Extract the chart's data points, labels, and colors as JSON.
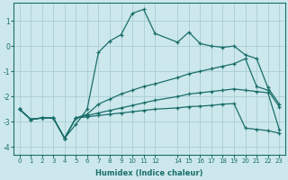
{
  "xlabel": "Humidex (Indice chaleur)",
  "background_color": "#cce8ec",
  "grid_color": "#aacdd4",
  "line_color": "#1a6e6a",
  "xlim": [
    -0.5,
    23.5
  ],
  "ylim": [
    -4.3,
    1.7
  ],
  "xticks": [
    0,
    1,
    2,
    3,
    4,
    5,
    6,
    7,
    8,
    9,
    10,
    11,
    12,
    14,
    15,
    16,
    17,
    18,
    19,
    20,
    21,
    22,
    23
  ],
  "yticks": [
    -4,
    -3,
    -2,
    -1,
    0,
    1
  ],
  "x": [
    0,
    1,
    2,
    3,
    4,
    5,
    6,
    7,
    8,
    9,
    10,
    11,
    12,
    14,
    15,
    16,
    17,
    18,
    19,
    20,
    21,
    22,
    23
  ],
  "series": [
    [
      -2.5,
      -2.9,
      -2.85,
      -2.85,
      -3.65,
      -3.1,
      -2.5,
      -0.25,
      0.2,
      0.45,
      1.3,
      1.45,
      0.5,
      0.15,
      0.55,
      0.1,
      0.0,
      -0.05,
      0.0,
      -0.35,
      -0.5,
      -1.65,
      -2.3
    ],
    [
      -2.5,
      -2.9,
      -2.85,
      -2.85,
      -3.65,
      -2.85,
      -2.7,
      -2.3,
      -2.1,
      -1.9,
      -1.75,
      -1.6,
      -1.5,
      -1.25,
      -1.1,
      -1.0,
      -0.9,
      -0.8,
      -0.7,
      -0.5,
      -1.6,
      -1.75,
      -2.4
    ],
    [
      -2.5,
      -2.9,
      -2.85,
      -2.85,
      -3.65,
      -2.85,
      -2.75,
      -2.65,
      -2.55,
      -2.45,
      -2.35,
      -2.25,
      -2.15,
      -2.0,
      -1.9,
      -1.85,
      -1.8,
      -1.75,
      -1.7,
      -1.75,
      -1.8,
      -1.85,
      -3.3
    ],
    [
      -2.5,
      -2.9,
      -2.85,
      -2.85,
      -3.65,
      -2.85,
      -2.8,
      -2.75,
      -2.7,
      -2.65,
      -2.6,
      -2.55,
      -2.5,
      -2.45,
      -2.4,
      -2.38,
      -2.35,
      -2.3,
      -2.28,
      -3.25,
      -3.3,
      -3.35,
      -3.45
    ]
  ]
}
